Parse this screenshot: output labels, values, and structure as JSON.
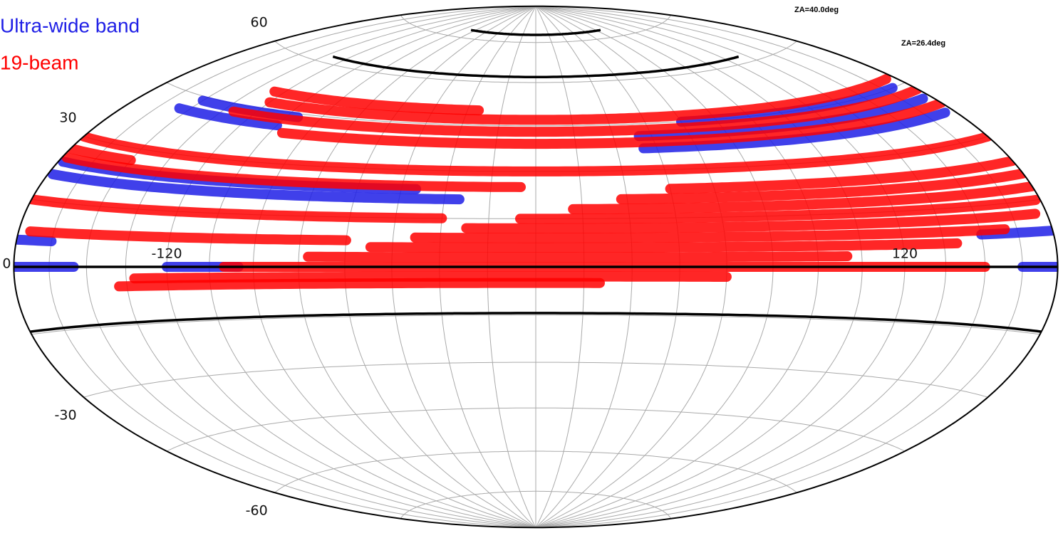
{
  "chart_data": {
    "type": "hammer",
    "lat_ticks": [
      60,
      30,
      0,
      -30,
      -60
    ],
    "lon_ticks": [
      -120,
      120
    ],
    "grid_step": 15,
    "grid": true,
    "za_labels": [
      "ZA=40.0deg",
      "ZA=26.4deg"
    ],
    "za_curves": [
      {
        "dec": 78,
        "lon": [
          -80,
          80
        ]
      },
      {
        "dec": 62,
        "lon": [
          -130,
          130
        ]
      },
      {
        "dec": 0,
        "lon": [
          -180,
          180
        ]
      },
      {
        "dec": -14.4,
        "lon": [
          -180,
          180
        ]
      }
    ],
    "series": [
      {
        "name": "Ultra-wide band",
        "color": "#1f1fe6",
        "tracks": [
          {
            "dec": 44,
            "lon": [
              -150,
              -100
            ]
          },
          {
            "dec": 41,
            "lon": [
              -155,
              -105
            ]
          },
          {
            "dec": 45,
            "lon": [
              60,
              170
            ]
          },
          {
            "dec": 41,
            "lon": [
              40,
              175
            ]
          },
          {
            "dec": 37,
            "lon": [
              40,
              175
            ]
          },
          {
            "dec": 24,
            "lon": [
              -178,
              -40
            ]
          },
          {
            "dec": 21,
            "lon": [
              -178,
              -25
            ]
          },
          {
            "dec": 6,
            "lon": [
              -180,
              -165
            ]
          },
          {
            "dec": 8,
            "lon": [
              150,
              180
            ]
          },
          {
            "dec": 0,
            "lon": [
              -180,
              -155
            ]
          },
          {
            "dec": 0,
            "lon": [
              -120,
              -95
            ]
          },
          {
            "dec": 0,
            "lon": [
              165,
              180
            ]
          }
        ]
      },
      {
        "name": "19-beam",
        "color": "#ff0000",
        "tracks": [
          {
            "dec": 50,
            "lon": [
              -125,
              -25
            ]
          },
          {
            "dec": 47,
            "lon": [
              -120,
              175
            ]
          },
          {
            "dec": 43,
            "lon": [
              -130,
              180
            ]
          },
          {
            "dec": 39,
            "lon": [
              -100,
              180
            ]
          },
          {
            "dec": 30,
            "lon": [
              -180,
              180
            ]
          },
          {
            "dec": 27,
            "lon": [
              -180,
              -150
            ]
          },
          {
            "dec": 25,
            "lon": [
              -178,
              -5
            ]
          },
          {
            "dec": 15,
            "lon": [
              -180,
              -30
            ]
          },
          {
            "dec": 8,
            "lon": [
              -175,
              -60
            ]
          },
          {
            "dec": -5,
            "lon": [
              -138,
              20
            ]
          },
          {
            "dec": -3,
            "lon": [
              -132,
              60
            ]
          },
          {
            "dec": 0,
            "lon": [
              -100,
              150
            ]
          },
          {
            "dec": 3,
            "lon": [
              -72,
              100
            ]
          },
          {
            "dec": 6,
            "lon": [
              -52,
              140
            ]
          },
          {
            "dec": 9,
            "lon": [
              -38,
              160
            ]
          },
          {
            "dec": 12,
            "lon": [
              -22,
              175
            ]
          },
          {
            "dec": 15,
            "lon": [
              -5,
              178
            ]
          },
          {
            "dec": 18,
            "lon": [
              12,
              180
            ]
          },
          {
            "dec": 21,
            "lon": [
              28,
              180
            ]
          },
          {
            "dec": 24,
            "lon": [
              45,
              180
            ]
          }
        ]
      }
    ]
  }
}
